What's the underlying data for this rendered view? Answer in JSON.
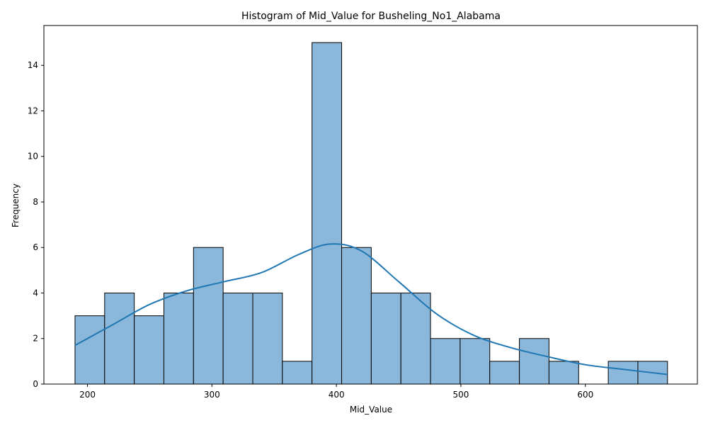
{
  "chart_data": {
    "type": "bar",
    "title": "Histogram of Mid_Value for Busheling_No1_Alabama",
    "xlabel": "Mid_Value",
    "ylabel": "Frequency",
    "xlim": [
      165,
      690
    ],
    "ylim": [
      0,
      15.75
    ],
    "xticks": [
      200,
      300,
      400,
      500,
      600
    ],
    "yticks": [
      0,
      2,
      4,
      6,
      8,
      10,
      12,
      14
    ],
    "bin_edges": [
      190,
      213.8,
      237.6,
      261.4,
      285.2,
      309,
      332.8,
      356.6,
      380.4,
      404.2,
      428,
      451.8,
      475.6,
      499.4,
      523.2,
      547,
      570.8,
      594.6,
      618.4,
      642.2,
      666
    ],
    "counts": [
      3,
      4,
      3,
      4,
      6,
      4,
      4,
      1,
      15,
      6,
      4,
      4,
      2,
      2,
      1,
      2,
      1,
      0,
      1,
      1
    ],
    "kde": {
      "x": [
        190,
        220,
        250,
        280,
        310,
        340,
        370,
        395,
        420,
        450,
        480,
        510,
        540,
        570,
        600,
        630,
        666
      ],
      "y": [
        1.7,
        2.6,
        3.5,
        4.1,
        4.5,
        4.9,
        5.7,
        6.15,
        5.85,
        4.5,
        3.1,
        2.15,
        1.6,
        1.2,
        0.85,
        0.65,
        0.42
      ]
    },
    "grid": false,
    "colors": {
      "bar_fill": "#8bb8da",
      "bar_edge": "#000000",
      "kde_line": "#1f77b4"
    }
  }
}
